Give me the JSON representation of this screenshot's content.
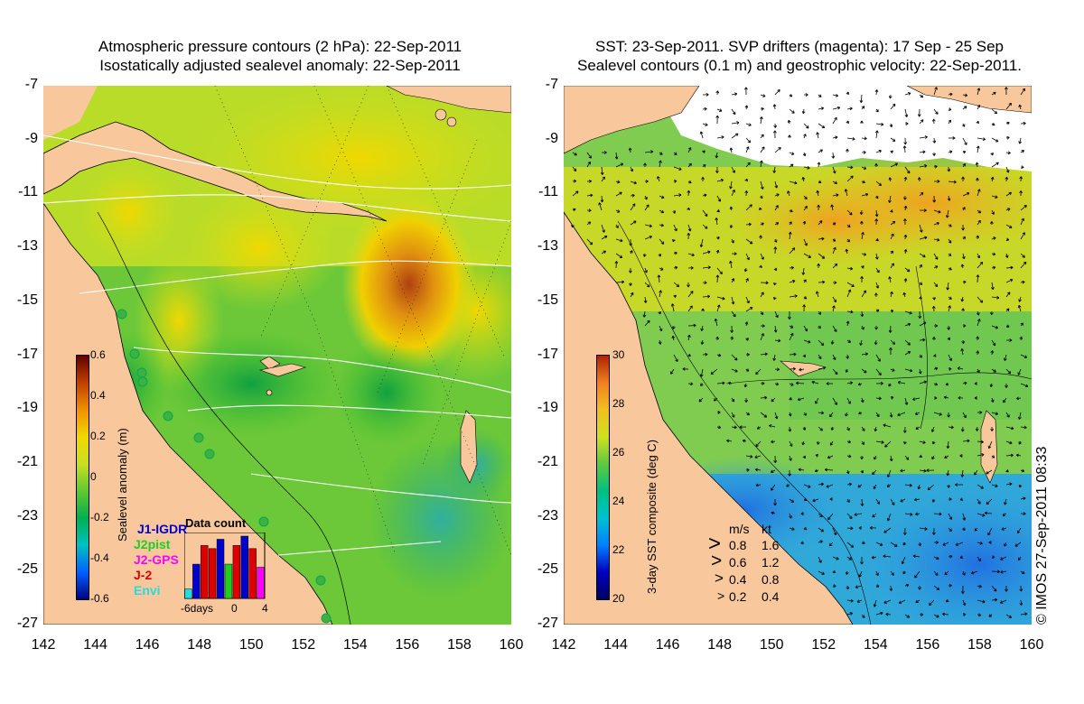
{
  "left_panel": {
    "title_line1": "Atmospheric pressure contours (2 hPa): 22-Sep-2011",
    "title_line2": "Isostatically adjusted sealevel anomaly: 22-Sep-2011",
    "colorbar": {
      "label": "Sealevel anomaly (m)",
      "ticks": [
        "0.6",
        "0.4",
        "0.2",
        "0",
        "-0.2",
        "-0.4",
        "-0.6"
      ]
    },
    "data_count": {
      "title": "Data count",
      "x_ticks": [
        "-6days",
        "0",
        "4"
      ],
      "satellites": [
        {
          "name": "J1-IGDR",
          "color": "#0000cc"
        },
        {
          "name": "J2pist",
          "color": "#22cc22"
        },
        {
          "name": "J2-GPS",
          "color": "#ff00ff"
        },
        {
          "name": "J-2",
          "color": "#dd0000"
        },
        {
          "name": "Envi",
          "color": "#22dddd"
        }
      ],
      "bars": [
        {
          "value": 0.15,
          "color": "#22dddd"
        },
        {
          "value": 0.55,
          "color": "#0000cc"
        },
        {
          "value": 0.85,
          "color": "#dd0000"
        },
        {
          "value": 0.8,
          "color": "#dd0000"
        },
        {
          "value": 0.95,
          "color": "#0000cc"
        },
        {
          "value": 0.55,
          "color": "#22cc22"
        },
        {
          "value": 0.85,
          "color": "#dd0000"
        },
        {
          "value": 1.0,
          "color": "#0000cc"
        },
        {
          "value": 0.8,
          "color": "#dd0000"
        },
        {
          "value": 0.5,
          "color": "#ff00ff"
        }
      ]
    }
  },
  "right_panel": {
    "title_line1": "SST: 23-Sep-2011. SVP drifters (magenta): 17 Sep - 25 Sep",
    "title_line2": "Sealevel contours (0.1 m) and geostrophic velocity: 22-Sep-2011.",
    "colorbar": {
      "label": "3-day SST composite (deg C)",
      "ticks": [
        "30",
        "28",
        "26",
        "24",
        "22",
        "20"
      ]
    },
    "velocity_legend": {
      "header_ms": "m/s",
      "header_kt": "kt",
      "rows": [
        {
          "ms": "0.8",
          "kt": "1.6"
        },
        {
          "ms": "0.6",
          "kt": "1.2"
        },
        {
          "ms": "0.4",
          "kt": "0.8"
        },
        {
          "ms": "0.2",
          "kt": "0.4"
        }
      ]
    }
  },
  "axes": {
    "lat_ticks": [
      "-7",
      "-9",
      "-11",
      "-13",
      "-15",
      "-17",
      "-19",
      "-21",
      "-23",
      "-25",
      "-27"
    ],
    "lon_ticks": [
      "142",
      "144",
      "146",
      "148",
      "150",
      "152",
      "154",
      "156",
      "158",
      "160"
    ]
  },
  "copyright": "© IMOS 27-Sep-2011 08:33",
  "colors": {
    "land": "#f8c89c",
    "sla_ramp": [
      "#000080",
      "#0060ff",
      "#00c0c0",
      "#00b050",
      "#60c830",
      "#c8e020",
      "#f0d800",
      "#f09000",
      "#c04000",
      "#600000"
    ],
    "sst_ramp": [
      "#000060",
      "#0000c0",
      "#0080ff",
      "#00c0d0",
      "#00c080",
      "#60c840",
      "#d0e020",
      "#f0c020",
      "#f08020",
      "#b02000"
    ]
  }
}
